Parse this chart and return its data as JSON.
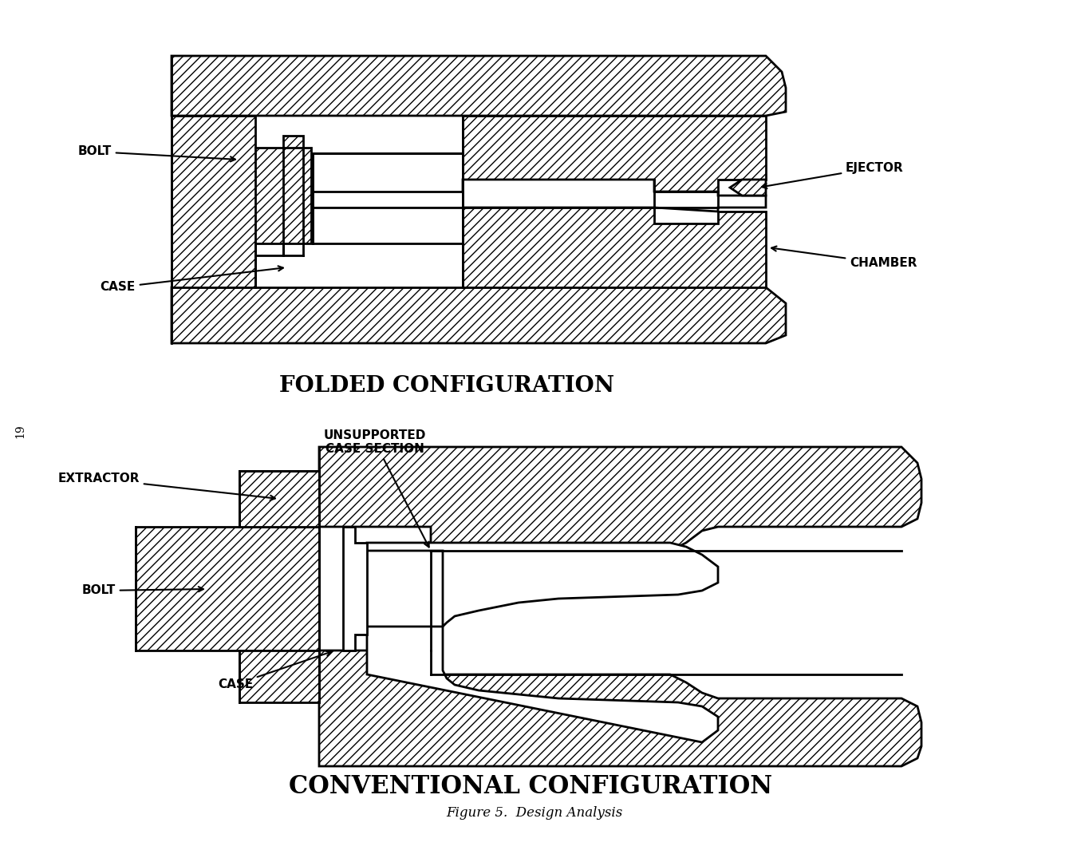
{
  "title": "Figure 5.  Design Analysis",
  "bg_color": "#ffffff",
  "line_color": "#000000",
  "hatch_color": "#000000",
  "folded_title": "FOLDED CONFIGURATION",
  "conventional_title": "CONVENTIONAL CONFIGURATION",
  "labels": {
    "bolt_top": "BOLT",
    "case_top": "CASE",
    "ejector": "EJECTOR",
    "chamber": "CHAMBER",
    "extractor": "EXTRACTOR",
    "unsupported": "UNSUPPORTED\nCASE SECTION",
    "bolt_bottom": "BOLT",
    "case_bottom": "CASE"
  }
}
